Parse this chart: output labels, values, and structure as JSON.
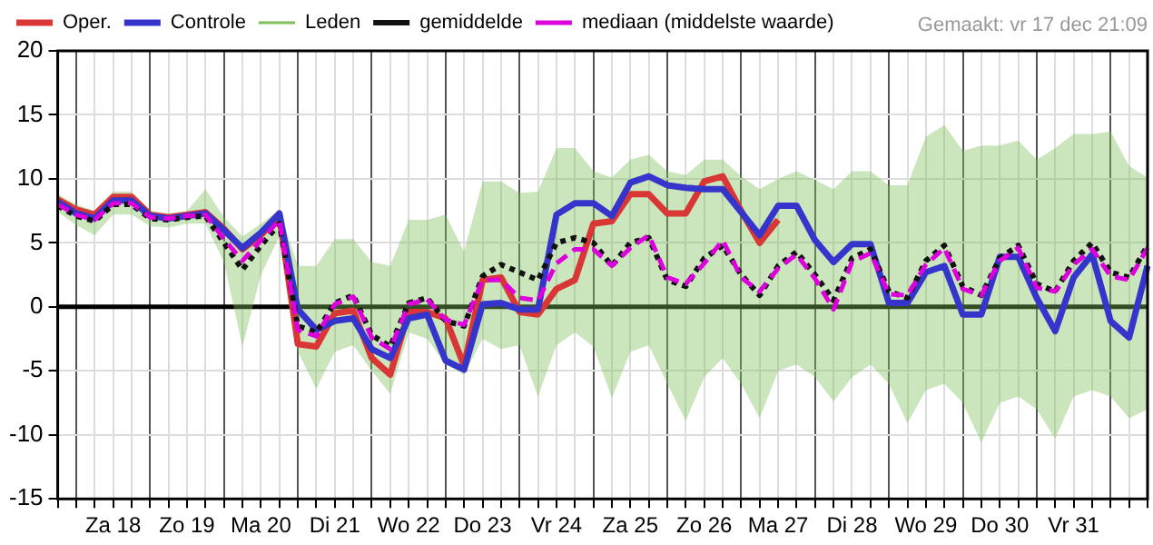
{
  "chart_data": {
    "type": "line",
    "legend": "top left",
    "marker": "none",
    "grid": true,
    "annotations": [
      "Gemaakt: vr 17 dec 21:09"
    ],
    "categories": [
      null,
      null,
      null,
      "Za 18",
      null,
      null,
      null,
      "Zo 19",
      null,
      null,
      null,
      "Ma 20",
      null,
      null,
      null,
      "Di 21",
      null,
      null,
      null,
      "Wo 22",
      null,
      null,
      null,
      "Do 23",
      null,
      null,
      null,
      "Vr 24",
      null,
      null,
      null,
      "Za 25",
      null,
      null,
      null,
      "Zo 26",
      null,
      null,
      null,
      "Ma 27",
      null,
      null,
      null,
      "Di 28",
      null,
      null,
      null,
      "Wo 29",
      null,
      null,
      null,
      "Do 30",
      null,
      null,
      null,
      "Vr 31",
      null,
      null,
      null,
      null
    ],
    "ylim": [
      -15,
      20
    ],
    "yticks": [
      -15,
      -10,
      -5,
      0,
      5,
      10,
      15,
      20
    ],
    "ref_lines": [
      {
        "axis": "y",
        "value": 0,
        "color": "#000000"
      }
    ],
    "series": [
      {
        "name": "Oper.",
        "color": "#d93636",
        "line_style": "solid",
        "values": [
          8.4,
          7.6,
          7.2,
          8.6,
          8.6,
          7.2,
          7.0,
          7.2,
          7.4,
          6.1,
          4.5,
          5.6,
          7.1,
          -2.9,
          -3.1,
          -0.5,
          -0.3,
          -4.0,
          -5.3,
          -0.4,
          -0.4,
          -0.9,
          -4.6,
          2.1,
          2.3,
          -0.4,
          -0.6,
          1.4,
          2.1,
          6.5,
          6.7,
          8.8,
          8.8,
          7.3,
          7.3,
          9.8,
          10.2,
          7.5,
          5.0,
          6.8,
          null,
          null,
          null,
          null,
          null,
          null,
          null,
          null,
          null,
          null,
          null,
          null,
          null,
          null,
          null,
          null,
          null,
          null,
          null,
          null
        ]
      },
      {
        "name": "Controle",
        "color": "#3535cc",
        "line_style": "solid",
        "values": [
          8.2,
          7.3,
          6.9,
          8.3,
          8.3,
          7.1,
          6.9,
          7.1,
          7.3,
          6.0,
          4.6,
          5.8,
          7.3,
          -0.2,
          -1.8,
          -1.1,
          -0.9,
          -3.3,
          -4.0,
          -0.9,
          -0.6,
          -4.2,
          -4.9,
          0.2,
          0.3,
          -0.2,
          -0.2,
          7.2,
          8.1,
          8.1,
          7.1,
          9.7,
          10.2,
          9.5,
          9.3,
          9.2,
          9.2,
          7.4,
          5.6,
          7.9,
          7.9,
          5.2,
          3.5,
          4.9,
          4.9,
          0.3,
          0.3,
          2.7,
          3.2,
          -0.6,
          -0.6,
          3.9,
          3.9,
          0.7,
          -1.9,
          2.3,
          4.1,
          -1.1,
          -2.4,
          3.2
        ]
      },
      {
        "name": "Leden",
        "color": "#7cbf5a",
        "values": [
          null,
          null,
          null,
          null,
          null,
          null,
          null,
          null,
          null,
          null,
          null,
          null,
          null,
          null,
          null,
          null,
          null,
          null,
          null,
          null,
          null,
          null,
          null,
          null,
          null,
          null,
          null,
          null,
          null,
          null,
          null,
          null,
          null,
          null,
          null,
          null,
          null,
          null,
          null,
          null,
          null,
          null,
          null,
          null,
          null,
          null,
          null,
          null,
          null,
          null,
          null,
          null,
          null,
          null,
          null,
          null,
          null,
          null,
          null,
          null
        ],
        "lower": [
          7.4,
          6.4,
          5.6,
          7.2,
          7.2,
          6.3,
          6.2,
          6.5,
          6.5,
          3.5,
          -3.1,
          2.5,
          5.5,
          -3.5,
          -6.4,
          -3.5,
          -3.0,
          -5.0,
          -6.8,
          -2.0,
          -2.5,
          -4.5,
          -5.3,
          -2.5,
          -3.3,
          -3.0,
          -7.0,
          -3.0,
          -2.0,
          -3.1,
          -7.1,
          -3.5,
          -3.0,
          -6.0,
          -8.9,
          -5.5,
          -4.0,
          -6.0,
          -8.7,
          -5.0,
          -4.5,
          -5.5,
          -7.4,
          -5.5,
          -4.5,
          -6.0,
          -9.1,
          -6.5,
          -6.0,
          -7.5,
          -10.6,
          -7.5,
          -7.0,
          -8.0,
          -10.3,
          -7.0,
          -6.5,
          -7.0,
          -8.7,
          -8.0
        ],
        "upper": [
          8.8,
          8.0,
          7.5,
          9.0,
          9.0,
          7.5,
          7.3,
          7.5,
          9.2,
          7.0,
          5.5,
          6.5,
          7.6,
          3.2,
          3.2,
          5.3,
          5.3,
          3.5,
          3.2,
          6.8,
          6.8,
          7.2,
          4.3,
          9.8,
          9.8,
          8.9,
          9.0,
          12.4,
          12.4,
          10.6,
          10.1,
          11.5,
          11.9,
          10.6,
          10.3,
          11.5,
          11.5,
          10.2,
          9.2,
          10.0,
          10.6,
          9.9,
          9.2,
          10.6,
          10.6,
          9.5,
          9.5,
          13.3,
          14.2,
          12.2,
          12.6,
          12.6,
          13.0,
          11.5,
          12.4,
          13.5,
          13.5,
          13.7,
          11.0,
          10.1
        ]
      },
      {
        "name": "gemiddelde",
        "color": "#111111",
        "line_style": "dotted",
        "values": [
          7.9,
          7.1,
          6.7,
          8.0,
          8.0,
          6.9,
          6.8,
          7.0,
          7.1,
          5.0,
          2.9,
          4.8,
          6.5,
          -1.5,
          -2.0,
          0.3,
          0.9,
          -2.2,
          -3.1,
          0.3,
          0.7,
          -1.1,
          -1.5,
          2.4,
          3.3,
          2.7,
          2.1,
          5.0,
          5.4,
          5.0,
          3.2,
          5.0,
          5.4,
          2.1,
          1.6,
          3.8,
          4.8,
          2.5,
          0.9,
          3.2,
          4.3,
          2.5,
          0.5,
          3.8,
          4.5,
          1.2,
          0.7,
          3.6,
          4.8,
          1.6,
          0.9,
          3.8,
          4.8,
          1.8,
          1.2,
          3.6,
          5.0,
          2.7,
          2.3,
          4.8
        ]
      },
      {
        "name": "mediaan (middelste waarde)",
        "color": "#dd00dd",
        "line_style": "dashed",
        "values": [
          8.0,
          7.2,
          6.8,
          8.1,
          8.1,
          7.0,
          6.9,
          7.1,
          7.2,
          5.3,
          3.6,
          5.2,
          6.8,
          -1.8,
          -2.3,
          0.2,
          0.8,
          -2.4,
          -3.3,
          0.2,
          0.6,
          -1.0,
          -1.4,
          2.1,
          2.1,
          0.7,
          0.5,
          3.4,
          4.5,
          4.5,
          3.2,
          4.6,
          5.6,
          2.3,
          1.8,
          3.4,
          5.2,
          2.3,
          1.2,
          3.0,
          4.1,
          2.2,
          -0.2,
          3.5,
          4.2,
          1.0,
          0.9,
          3.3,
          4.6,
          1.4,
          0.9,
          3.6,
          4.6,
          1.5,
          1.2,
          3.3,
          4.5,
          2.4,
          2.1,
          4.6
        ]
      }
    ]
  }
}
